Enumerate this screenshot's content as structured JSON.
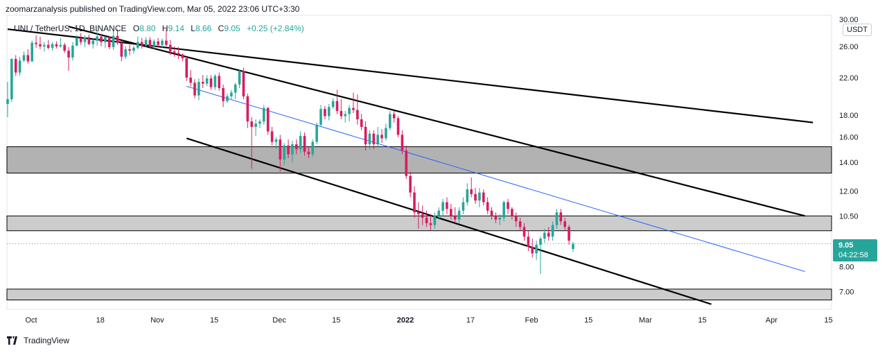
{
  "header": {
    "published_by": "zoomarzanalysis published on TradingView.com, Mar 05, 2022 23:06 UTC+3:30"
  },
  "legend": {
    "symbol": "UNI / TetherUS, 1D, BINANCE",
    "open_label": "O",
    "open": "8.80",
    "high_label": "H",
    "high": "9.14",
    "low_label": "L",
    "low": "8.66",
    "close_label": "C",
    "close": "9.05",
    "change": "+0.25 (+2.84%)"
  },
  "price_scale": {
    "currency": "USDT"
  },
  "last_price": {
    "value": "9.05",
    "countdown": "04:22:58"
  },
  "footer": {
    "brand": "TradingView"
  },
  "colors": {
    "up": "#26a69a",
    "down": "#ef5350",
    "down_body": "#d81b60",
    "zone_dark": "#b2b2b2",
    "zone_light": "#cccccc",
    "trendline": "#000000",
    "channel_mid": "#2962ff",
    "price_line": "#26a69a"
  },
  "chart_data": {
    "type": "candlestick",
    "scale": "log",
    "ylim": [
      6.5,
      30
    ],
    "y_ticks": [
      "30.00",
      "26.00",
      "22.00",
      "18.00",
      "16.00",
      "14.00",
      "12.00",
      "10.50",
      "9.05",
      "8.00",
      "7.00"
    ],
    "x_tick_labels": [
      {
        "label": "Oct",
        "day": 0
      },
      {
        "label": "18",
        "day": 17
      },
      {
        "label": "Nov",
        "day": 31
      },
      {
        "label": "15",
        "day": 45
      },
      {
        "label": "Dec",
        "day": 61
      },
      {
        "label": "15",
        "day": 75
      },
      {
        "label": "2022",
        "day": 92
      },
      {
        "label": "17",
        "day": 108
      },
      {
        "label": "Feb",
        "day": 123
      },
      {
        "label": "15",
        "day": 137
      },
      {
        "label": "Mar",
        "day": 151
      },
      {
        "label": "15",
        "day": 165
      },
      {
        "label": "Apr",
        "day": 182
      },
      {
        "label": "15",
        "day": 196
      }
    ],
    "zones": [
      {
        "low": 13.2,
        "high": 15.2
      },
      {
        "low": 9.7,
        "high": 10.5
      },
      {
        "low": 6.7,
        "high": 7.1
      }
    ],
    "trendlines": [
      {
        "from": {
          "day": 0,
          "price": 28.5
        },
        "to": {
          "day": 120,
          "price": 21.8
        },
        "style": "resistance",
        "extend_to": {
          "day": 198,
          "price": 17.3
        }
      },
      {
        "from": {
          "day": 15,
          "price": 28.9
        },
        "to": {
          "day": 196,
          "price": 10.5
        },
        "style": "channel_top"
      },
      {
        "from": {
          "day": 44,
          "price": 15.9
        },
        "to": {
          "day": 173,
          "price": 6.55
        },
        "style": "channel_bottom"
      },
      {
        "from": {
          "day": 44,
          "price": 21.0
        },
        "to": {
          "day": 196,
          "price": 7.8
        },
        "style": "channel_mid"
      }
    ],
    "candles": [
      [
        0,
        19.1,
        21.5,
        17.8,
        19.6
      ],
      [
        1,
        19.6,
        24.4,
        19.3,
        24.3
      ],
      [
        2,
        24.3,
        24.8,
        22.2,
        22.6
      ],
      [
        3,
        22.6,
        24.6,
        22.2,
        24.1
      ],
      [
        4,
        24.1,
        25.3,
        23.9,
        24.8
      ],
      [
        5,
        24.8,
        25.6,
        23.7,
        24.0
      ],
      [
        6,
        24.0,
        26.8,
        23.9,
        26.5
      ],
      [
        7,
        26.5,
        27.6,
        25.8,
        26.3
      ],
      [
        8,
        26.3,
        27.4,
        25.6,
        26.0
      ],
      [
        9,
        26.0,
        26.6,
        25.3,
        26.2
      ],
      [
        10,
        26.2,
        26.9,
        25.6,
        25.8
      ],
      [
        11,
        25.8,
        26.6,
        25.4,
        26.3
      ],
      [
        12,
        26.3,
        26.7,
        25.7,
        26.0
      ],
      [
        13,
        26.0,
        27.2,
        25.8,
        26.2
      ],
      [
        14,
        26.2,
        26.5,
        25.1,
        25.4
      ],
      [
        15,
        25.4,
        25.9,
        22.8,
        24.5
      ],
      [
        16,
        24.5,
        26.6,
        24.1,
        26.1
      ],
      [
        17,
        26.1,
        27.6,
        26.0,
        27.2
      ],
      [
        18,
        27.2,
        27.9,
        26.2,
        26.6
      ],
      [
        19,
        26.6,
        27.6,
        25.9,
        27.3
      ],
      [
        20,
        27.3,
        27.7,
        26.2,
        26.3
      ],
      [
        21,
        26.3,
        27.1,
        25.7,
        26.8
      ],
      [
        22,
        26.8,
        28.4,
        26.1,
        27.4
      ],
      [
        23,
        27.4,
        27.8,
        26.0,
        26.6
      ],
      [
        24,
        26.6,
        27.4,
        25.8,
        27.3
      ],
      [
        25,
        27.3,
        27.5,
        25.6,
        25.9
      ],
      [
        26,
        25.9,
        28.2,
        25.5,
        27.5
      ],
      [
        27,
        27.5,
        28.5,
        26.2,
        26.5
      ],
      [
        28,
        26.5,
        26.8,
        24.0,
        24.6
      ],
      [
        29,
        24.6,
        26.0,
        24.3,
        25.6
      ],
      [
        30,
        25.6,
        26.2,
        24.8,
        25.4
      ],
      [
        31,
        25.4,
        26.1,
        25.0,
        25.8
      ],
      [
        32,
        25.8,
        27.4,
        25.6,
        26.6
      ],
      [
        33,
        26.6,
        27.2,
        25.7,
        26.1
      ],
      [
        34,
        26.1,
        27.3,
        25.9,
        26.9
      ],
      [
        35,
        26.9,
        27.3,
        25.7,
        26.0
      ],
      [
        36,
        26.0,
        27.0,
        25.6,
        26.7
      ],
      [
        37,
        26.7,
        27.2,
        25.9,
        26.2
      ],
      [
        38,
        26.2,
        27.1,
        25.8,
        26.8
      ],
      [
        39,
        26.8,
        28.4,
        26.0,
        26.2
      ],
      [
        40,
        26.2,
        26.9,
        24.8,
        25.3
      ],
      [
        41,
        25.3,
        26.0,
        24.6,
        25.1
      ],
      [
        42,
        25.1,
        25.9,
        24.3,
        24.9
      ],
      [
        43,
        24.9,
        25.0,
        24.0,
        24.4
      ],
      [
        44,
        24.4,
        24.6,
        21.6,
        22.0
      ],
      [
        45,
        22.0,
        22.9,
        21.0,
        21.4
      ],
      [
        46,
        21.4,
        21.8,
        19.7,
        20.0
      ],
      [
        47,
        20.0,
        21.9,
        19.5,
        21.5
      ],
      [
        48,
        21.5,
        22.3,
        20.8,
        21.3
      ],
      [
        49,
        21.3,
        22.3,
        21.0,
        21.9
      ],
      [
        50,
        21.9,
        22.3,
        20.6,
        20.9
      ],
      [
        51,
        20.9,
        22.4,
        20.6,
        22.2
      ],
      [
        52,
        22.2,
        22.6,
        20.5,
        20.8
      ],
      [
        53,
        20.8,
        21.2,
        18.8,
        19.4
      ],
      [
        54,
        19.4,
        20.2,
        19.2,
        19.9
      ],
      [
        55,
        19.9,
        20.6,
        19.6,
        20.3
      ],
      [
        56,
        20.3,
        21.4,
        19.6,
        21.2
      ],
      [
        57,
        21.2,
        23.0,
        20.8,
        22.8
      ],
      [
        58,
        22.8,
        23.2,
        19.6,
        19.9
      ],
      [
        59,
        19.9,
        20.2,
        16.8,
        17.4
      ],
      [
        60,
        17.4,
        17.8,
        13.5,
        16.9
      ],
      [
        61,
        16.9,
        17.6,
        16.1,
        17.2
      ],
      [
        62,
        17.2,
        17.6,
        16.8,
        17.4
      ],
      [
        63,
        17.4,
        19.0,
        17.1,
        18.7
      ],
      [
        64,
        18.7,
        18.8,
        16.2,
        16.5
      ],
      [
        65,
        16.5,
        16.9,
        15.3,
        15.6
      ],
      [
        66,
        15.6,
        16.0,
        15.0,
        15.8
      ],
      [
        67,
        15.8,
        16.2,
        13.3,
        14.2
      ],
      [
        68,
        14.2,
        15.5,
        13.8,
        15.3
      ],
      [
        69,
        15.3,
        15.8,
        14.3,
        14.6
      ],
      [
        70,
        14.6,
        15.7,
        14.0,
        15.4
      ],
      [
        71,
        15.4,
        15.8,
        14.6,
        15.0
      ],
      [
        72,
        15.0,
        16.5,
        14.7,
        16.1
      ],
      [
        73,
        16.1,
        16.4,
        14.5,
        14.8
      ],
      [
        74,
        14.8,
        15.2,
        14.3,
        14.6
      ],
      [
        75,
        14.6,
        15.8,
        14.4,
        15.6
      ],
      [
        76,
        15.6,
        17.3,
        15.4,
        17.1
      ],
      [
        77,
        17.1,
        19.0,
        16.9,
        18.6
      ],
      [
        78,
        18.6,
        18.9,
        17.6,
        17.9
      ],
      [
        79,
        17.9,
        19.1,
        17.5,
        18.8
      ],
      [
        80,
        18.8,
        19.7,
        18.6,
        19.4
      ],
      [
        81,
        19.4,
        20.6,
        18.1,
        18.4
      ],
      [
        82,
        18.4,
        19.6,
        17.6,
        17.9
      ],
      [
        83,
        17.9,
        18.4,
        17.3,
        18.1
      ],
      [
        84,
        18.1,
        19.0,
        17.4,
        18.7
      ],
      [
        85,
        18.7,
        20.3,
        18.2,
        18.5
      ],
      [
        86,
        18.5,
        20.1,
        17.1,
        17.6
      ],
      [
        87,
        17.6,
        18.1,
        16.6,
        16.9
      ],
      [
        88,
        16.9,
        17.4,
        14.9,
        15.4
      ],
      [
        89,
        15.4,
        16.6,
        15.0,
        16.3
      ],
      [
        90,
        16.3,
        16.6,
        15.0,
        15.4
      ],
      [
        91,
        15.4,
        16.9,
        15.2,
        16.2
      ],
      [
        92,
        16.2,
        16.7,
        15.5,
        15.9
      ],
      [
        93,
        15.9,
        17.2,
        15.7,
        16.8
      ],
      [
        94,
        16.8,
        18.4,
        16.6,
        18.1
      ],
      [
        95,
        18.1,
        18.4,
        17.3,
        17.7
      ],
      [
        96,
        17.7,
        17.9,
        16.0,
        16.2
      ],
      [
        97,
        16.2,
        16.6,
        14.6,
        14.9
      ],
      [
        98,
        14.9,
        15.3,
        12.8,
        13.0
      ],
      [
        99,
        13.0,
        13.3,
        11.6,
        11.9
      ],
      [
        100,
        11.9,
        12.3,
        10.4,
        10.7
      ],
      [
        101,
        10.7,
        11.3,
        9.8,
        10.6
      ],
      [
        102,
        10.6,
        11.1,
        10.0,
        10.4
      ],
      [
        103,
        10.4,
        10.8,
        9.9,
        10.1
      ],
      [
        104,
        10.1,
        10.6,
        9.7,
        10.0
      ],
      [
        105,
        10.0,
        10.7,
        9.8,
        10.5
      ],
      [
        106,
        10.5,
        11.0,
        10.3,
        10.8
      ],
      [
        107,
        10.8,
        11.5,
        10.5,
        11.3
      ],
      [
        108,
        11.3,
        11.6,
        10.6,
        10.9
      ],
      [
        109,
        10.9,
        11.2,
        10.3,
        10.5
      ],
      [
        110,
        10.5,
        11.0,
        10.1,
        10.3
      ],
      [
        111,
        10.3,
        11.0,
        10.1,
        10.8
      ],
      [
        112,
        10.8,
        11.6,
        10.6,
        11.3
      ],
      [
        113,
        11.3,
        12.5,
        11.1,
        12.1
      ],
      [
        114,
        12.1,
        12.9,
        11.6,
        11.8
      ],
      [
        115,
        11.8,
        12.2,
        11.2,
        11.4
      ],
      [
        116,
        11.4,
        12.2,
        11.0,
        11.9
      ],
      [
        117,
        11.9,
        12.1,
        11.1,
        11.3
      ],
      [
        118,
        11.3,
        11.6,
        10.6,
        10.8
      ],
      [
        119,
        10.8,
        11.0,
        10.3,
        10.5
      ],
      [
        120,
        10.5,
        10.7,
        10.1,
        10.3
      ],
      [
        121,
        10.3,
        10.6,
        10.0,
        10.4
      ],
      [
        122,
        10.4,
        11.4,
        10.2,
        11.3
      ],
      [
        123,
        11.3,
        11.5,
        10.6,
        10.9
      ],
      [
        124,
        10.9,
        11.0,
        10.3,
        10.5
      ],
      [
        125,
        10.5,
        10.7,
        9.9,
        10.2
      ],
      [
        126,
        10.2,
        10.4,
        9.7,
        9.9
      ],
      [
        127,
        9.9,
        10.1,
        9.2,
        9.4
      ],
      [
        128,
        9.4,
        9.7,
        8.7,
        8.9
      ],
      [
        129,
        8.9,
        9.3,
        8.4,
        8.6
      ],
      [
        130,
        8.6,
        9.2,
        8.3,
        9.0
      ],
      [
        131,
        9.0,
        9.4,
        7.7,
        9.3
      ],
      [
        132,
        9.3,
        9.8,
        9.1,
        9.6
      ],
      [
        133,
        9.6,
        9.9,
        9.2,
        9.4
      ],
      [
        134,
        9.4,
        10.2,
        9.2,
        10.0
      ],
      [
        135,
        10.0,
        10.9,
        9.8,
        10.7
      ],
      [
        136,
        10.7,
        10.9,
        10.0,
        10.2
      ],
      [
        137,
        10.2,
        10.4,
        9.7,
        9.9
      ],
      [
        138,
        9.9,
        10.0,
        9.0,
        9.2
      ],
      [
        139,
        8.8,
        9.14,
        8.66,
        9.05
      ]
    ],
    "last_price": 9.05
  }
}
